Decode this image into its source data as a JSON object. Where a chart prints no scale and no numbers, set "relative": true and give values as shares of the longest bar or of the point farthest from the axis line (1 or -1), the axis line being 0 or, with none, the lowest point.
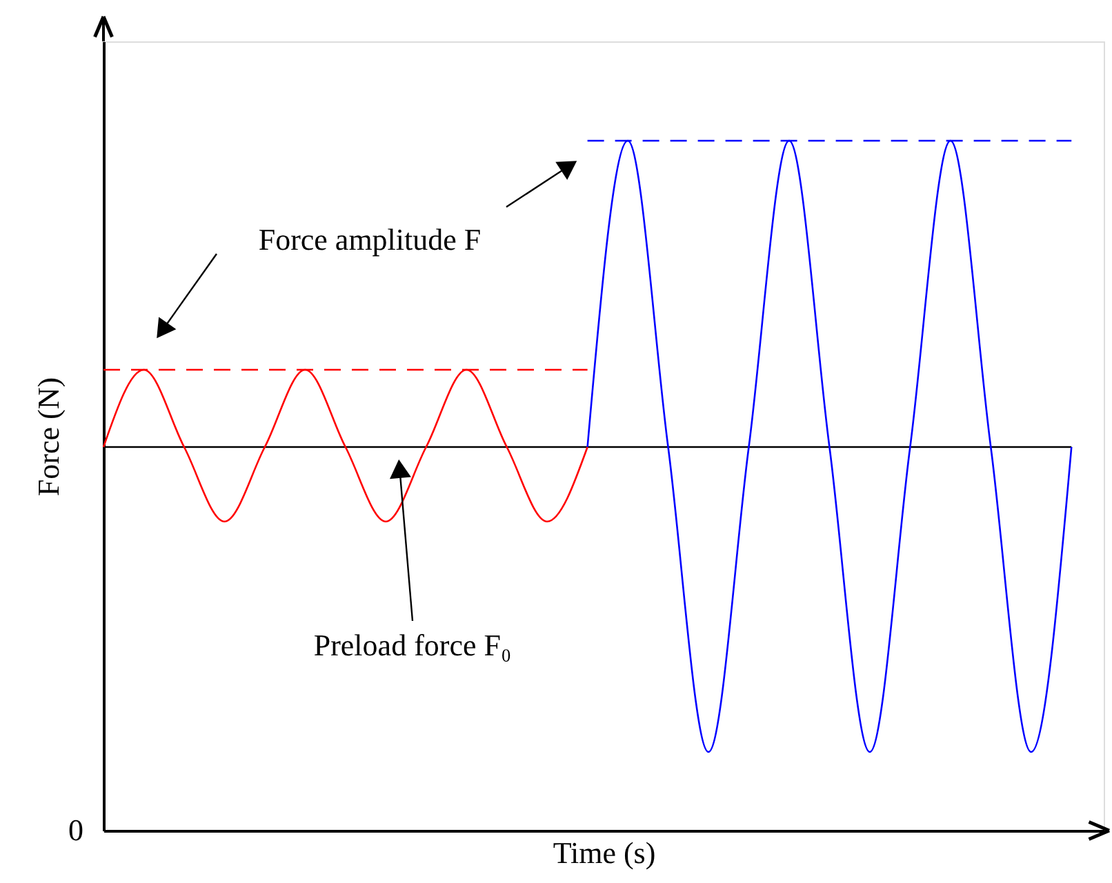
{
  "chart_data": {
    "type": "line",
    "relative": true,
    "xlabel": "Time (s)",
    "ylabel": "Force (N)",
    "categories": [
      null,
      null,
      null,
      null,
      null,
      null,
      null,
      null,
      null,
      null,
      null,
      null,
      null,
      null,
      null,
      null,
      null,
      null,
      null,
      null,
      null,
      null,
      null,
      null,
      null
    ],
    "series": [
      {
        "color": "#000000",
        "line_style": "solid",
        "values": [
          0.556,
          0.556,
          0.556,
          0.556,
          0.556,
          0.556,
          0.556,
          0.556,
          0.556,
          0.556,
          0.556,
          0.556,
          0.556,
          0.556,
          0.556,
          0.556,
          0.556,
          0.556,
          0.556,
          0.556,
          0.556,
          0.556,
          0.556,
          0.556,
          0.556
        ]
      },
      {
        "color": "#ff0000",
        "line_style": "dashed",
        "values": [
          0.668,
          0.668,
          0.668,
          0.668,
          0.668,
          0.668,
          0.668,
          0.668,
          0.668,
          0.668,
          0.668,
          0.668,
          0.668,
          null,
          null,
          null,
          null,
          null,
          null,
          null,
          null,
          null,
          null,
          null,
          null
        ]
      },
      {
        "color": "#0000ff",
        "line_style": "dashed",
        "values": [
          null,
          null,
          null,
          null,
          null,
          null,
          null,
          null,
          null,
          null,
          null,
          null,
          1,
          1,
          1,
          1,
          1,
          1,
          1,
          1,
          1,
          1,
          1,
          1,
          1
        ]
      },
      {
        "color": "#ff0000",
        "line_style": "solid",
        "values": [
          0.556,
          0.668,
          0.556,
          0.448,
          0.556,
          0.668,
          0.556,
          0.448,
          0.556,
          0.668,
          0.556,
          0.448,
          0.556,
          null,
          null,
          null,
          null,
          null,
          null,
          null,
          null,
          null,
          null,
          null,
          null
        ]
      },
      {
        "color": "#0000ff",
        "line_style": "solid",
        "values": [
          null,
          null,
          null,
          null,
          null,
          null,
          null,
          null,
          null,
          null,
          null,
          null,
          0.556,
          1,
          0.556,
          0.114,
          0.556,
          1,
          0.556,
          0.114,
          0.556,
          1,
          0.556,
          0.114,
          0.556
        ]
      }
    ],
    "annotations": [
      "Force amplitude F",
      "Preload force F₀",
      "0"
    ],
    "tick_labels": false,
    "grid": false
  }
}
